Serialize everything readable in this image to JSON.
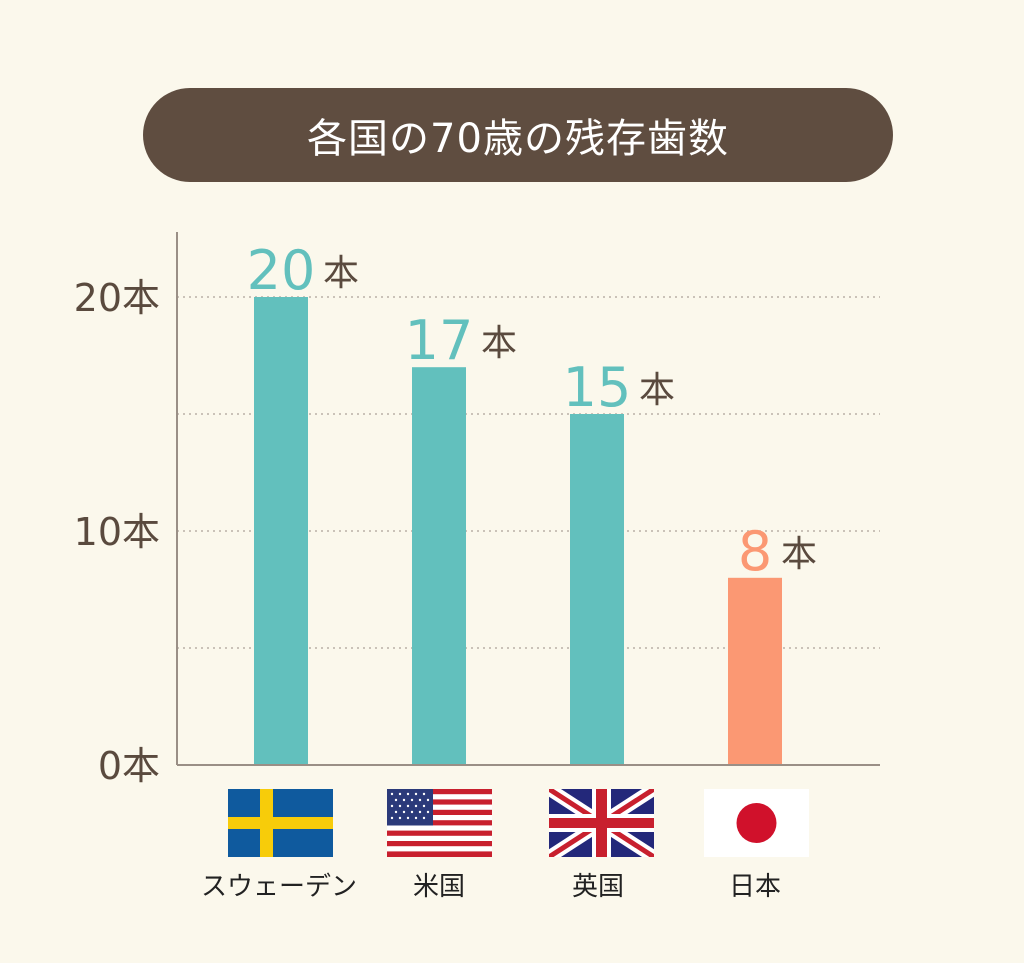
{
  "title": "各国の70歳の残存歯数",
  "colors": {
    "title_bg": "#5f4d40",
    "bar": "#62c0bd",
    "bar_highlight": "#fb9873",
    "axis": "#9a8f86",
    "grid": "#b9b0a6",
    "tick_text": "#5a4a3e",
    "unit_text": "#5a4a3e"
  },
  "chart_data": {
    "type": "bar",
    "title": "各国の70歳の残存歯数",
    "categories": [
      "スウェーデン",
      "米国",
      "英国",
      "日本"
    ],
    "values": [
      20,
      17,
      15,
      8
    ],
    "data_labels": [
      "20",
      "17",
      "15",
      "8"
    ],
    "unit": "本",
    "ylim": [
      0,
      20
    ],
    "yticks": [
      0,
      10,
      20
    ],
    "ytick_labels": [
      "0本",
      "10本",
      "20本"
    ],
    "grid": "dotted horizontal at 5, 10, 15, 20",
    "highlight_category": "日本",
    "category_icons": [
      "sweden-flag-icon",
      "usa-flag-icon",
      "uk-flag-icon",
      "japan-flag-icon"
    ]
  }
}
